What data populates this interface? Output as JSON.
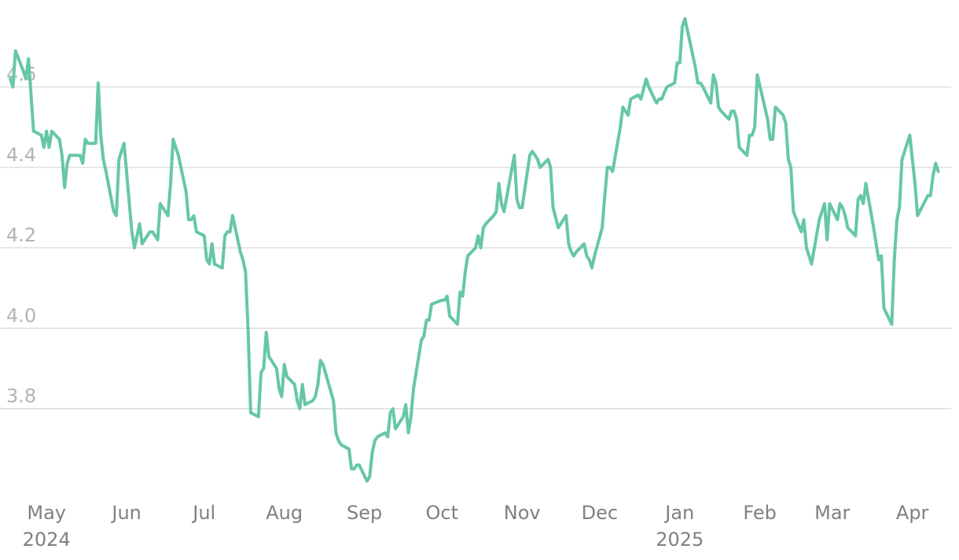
{
  "chart_data": {
    "type": "line",
    "title": "",
    "xlabel": "",
    "ylabel": "",
    "ylim": [
      3.59,
      4.785
    ],
    "yticks": [
      3.8,
      4.0,
      4.2,
      4.4,
      4.6
    ],
    "ytick_labels": [
      "3.8",
      "4.0",
      "4.2",
      "4.4",
      "4.6"
    ],
    "xlim": [
      "2024-04-27",
      "2025-04-30"
    ],
    "xticks": [
      {
        "date": "2024-05-15",
        "label": "May",
        "year": "2024"
      },
      {
        "date": "2024-06-15",
        "label": "Jun"
      },
      {
        "date": "2024-07-15",
        "label": "Jul"
      },
      {
        "date": "2024-08-15",
        "label": "Aug"
      },
      {
        "date": "2024-09-15",
        "label": "Sep"
      },
      {
        "date": "2024-10-15",
        "label": "Oct"
      },
      {
        "date": "2024-11-15",
        "label": "Nov"
      },
      {
        "date": "2024-12-15",
        "label": "Dec"
      },
      {
        "date": "2025-01-15",
        "label": "Jan",
        "year": "2025"
      },
      {
        "date": "2025-02-15",
        "label": "Feb"
      },
      {
        "date": "2025-03-15",
        "label": "Mar"
      },
      {
        "date": "2025-04-15",
        "label": "Apr"
      }
    ],
    "grid": "horizontal",
    "line_color": "#66c7a6",
    "grid_color": "#dcdcdc",
    "series": [
      {
        "x": [
          "2024-05-01",
          "2024-05-02",
          "2024-05-03",
          "2024-05-06",
          "2024-05-07",
          "2024-05-08",
          "2024-05-09",
          "2024-05-10",
          "2024-05-13",
          "2024-05-14",
          "2024-05-15",
          "2024-05-16",
          "2024-05-17",
          "2024-05-20",
          "2024-05-21",
          "2024-05-22",
          "2024-05-23",
          "2024-05-24",
          "2024-05-28",
          "2024-05-29",
          "2024-05-30",
          "2024-05-31",
          "2024-06-03",
          "2024-06-04",
          "2024-06-05",
          "2024-06-06",
          "2024-06-07",
          "2024-06-10",
          "2024-06-11",
          "2024-06-12",
          "2024-06-13",
          "2024-06-14",
          "2024-06-17",
          "2024-06-18",
          "2024-06-20",
          "2024-06-21",
          "2024-06-24",
          "2024-06-25",
          "2024-06-26",
          "2024-06-27",
          "2024-06-28",
          "2024-07-01",
          "2024-07-02",
          "2024-07-03",
          "2024-07-05",
          "2024-07-08",
          "2024-07-09",
          "2024-07-10",
          "2024-07-11",
          "2024-07-12",
          "2024-07-15",
          "2024-07-16",
          "2024-07-17",
          "2024-07-18",
          "2024-07-19",
          "2024-07-22",
          "2024-07-23",
          "2024-07-24",
          "2024-07-25",
          "2024-07-26",
          "2024-07-29",
          "2024-07-30",
          "2024-07-31",
          "2024-08-01",
          "2024-08-02",
          "2024-08-05",
          "2024-08-06",
          "2024-08-07",
          "2024-08-08",
          "2024-08-09",
          "2024-08-12",
          "2024-08-13",
          "2024-08-14",
          "2024-08-15",
          "2024-08-16",
          "2024-08-19",
          "2024-08-20",
          "2024-08-21",
          "2024-08-22",
          "2024-08-23",
          "2024-08-26",
          "2024-08-27",
          "2024-08-28",
          "2024-08-29",
          "2024-08-30",
          "2024-09-03",
          "2024-09-04",
          "2024-09-05",
          "2024-09-06",
          "2024-09-09",
          "2024-09-10",
          "2024-09-11",
          "2024-09-12",
          "2024-09-13",
          "2024-09-16",
          "2024-09-17",
          "2024-09-18",
          "2024-09-19",
          "2024-09-20",
          "2024-09-23",
          "2024-09-24",
          "2024-09-25",
          "2024-09-26",
          "2024-09-27",
          "2024-09-30",
          "2024-10-01",
          "2024-10-02",
          "2024-10-03",
          "2024-10-04",
          "2024-10-07",
          "2024-10-08",
          "2024-10-09",
          "2024-10-10",
          "2024-10-11",
          "2024-10-15",
          "2024-10-16",
          "2024-10-17",
          "2024-10-18",
          "2024-10-21",
          "2024-10-22",
          "2024-10-23",
          "2024-10-24",
          "2024-10-25",
          "2024-10-28",
          "2024-10-29",
          "2024-10-30",
          "2024-10-31",
          "2024-11-01",
          "2024-11-04",
          "2024-11-05",
          "2024-11-06",
          "2024-11-07",
          "2024-11-08",
          "2024-11-12",
          "2024-11-13",
          "2024-11-14",
          "2024-11-15",
          "2024-11-18",
          "2024-11-19",
          "2024-11-20",
          "2024-11-21",
          "2024-11-22",
          "2024-11-25",
          "2024-11-26",
          "2024-11-27",
          "2024-11-29",
          "2024-12-02",
          "2024-12-03",
          "2024-12-04",
          "2024-12-05",
          "2024-12-06",
          "2024-12-09",
          "2024-12-10",
          "2024-12-11",
          "2024-12-12",
          "2024-12-13",
          "2024-12-16",
          "2024-12-17",
          "2024-12-18",
          "2024-12-19",
          "2024-12-20",
          "2024-12-23",
          "2024-12-24",
          "2024-12-26",
          "2024-12-27",
          "2024-12-30",
          "2024-12-31",
          "2025-01-02",
          "2025-01-03",
          "2025-01-06",
          "2025-01-07",
          "2025-01-08",
          "2025-01-10",
          "2025-01-13",
          "2025-01-14",
          "2025-01-15",
          "2025-01-16",
          "2025-01-17",
          "2025-01-21",
          "2025-01-22",
          "2025-01-23",
          "2025-01-24",
          "2025-01-27",
          "2025-01-28",
          "2025-01-29",
          "2025-01-30",
          "2025-01-31",
          "2025-02-03",
          "2025-02-04",
          "2025-02-05",
          "2025-02-06",
          "2025-02-07",
          "2025-02-10",
          "2025-02-11",
          "2025-02-12",
          "2025-02-13",
          "2025-02-14",
          "2025-02-18",
          "2025-02-19",
          "2025-02-20",
          "2025-02-21",
          "2025-02-24",
          "2025-02-25",
          "2025-02-26",
          "2025-02-27",
          "2025-02-28",
          "2025-03-03",
          "2025-03-04",
          "2025-03-05",
          "2025-03-06",
          "2025-03-07",
          "2025-03-10",
          "2025-03-11",
          "2025-03-12",
          "2025-03-13",
          "2025-03-14",
          "2025-03-17",
          "2025-03-18",
          "2025-03-19",
          "2025-03-20",
          "2025-03-21",
          "2025-03-24",
          "2025-03-25",
          "2025-03-26",
          "2025-03-27",
          "2025-03-28",
          "2025-03-31",
          "2025-04-01",
          "2025-04-02",
          "2025-04-03",
          "2025-04-04",
          "2025-04-07",
          "2025-04-08",
          "2025-04-09",
          "2025-04-10",
          "2025-04-11",
          "2025-04-14",
          "2025-04-15",
          "2025-04-16",
          "2025-04-17",
          "2025-04-21",
          "2025-04-22",
          "2025-04-23",
          "2025-04-24",
          "2025-04-25"
        ],
        "y": [
          4.62,
          4.6,
          4.69,
          4.64,
          4.62,
          4.67,
          4.58,
          4.49,
          4.48,
          4.45,
          4.49,
          4.45,
          4.49,
          4.47,
          4.43,
          4.35,
          4.41,
          4.43,
          4.43,
          4.41,
          4.47,
          4.46,
          4.46,
          4.61,
          4.48,
          4.42,
          4.39,
          4.29,
          4.28,
          4.42,
          4.44,
          4.46,
          4.24,
          4.2,
          4.26,
          4.21,
          4.24,
          4.24,
          4.23,
          4.22,
          4.31,
          4.28,
          4.36,
          4.47,
          4.43,
          4.34,
          4.27,
          4.27,
          4.28,
          4.24,
          4.23,
          4.17,
          4.16,
          4.21,
          4.16,
          4.15,
          4.23,
          4.24,
          4.24,
          4.28,
          4.19,
          4.17,
          4.14,
          3.99,
          3.79,
          3.78,
          3.89,
          3.9,
          3.99,
          3.93,
          3.9,
          3.85,
          3.83,
          3.91,
          3.88,
          3.86,
          3.82,
          3.8,
          3.86,
          3.81,
          3.82,
          3.83,
          3.86,
          3.92,
          3.91,
          3.82,
          3.74,
          3.72,
          3.71,
          3.7,
          3.65,
          3.65,
          3.66,
          3.66,
          3.62,
          3.63,
          3.69,
          3.72,
          3.73,
          3.74,
          3.73,
          3.79,
          3.8,
          3.75,
          3.78,
          3.81,
          3.74,
          3.78,
          3.85,
          3.97,
          3.98,
          4.02,
          4.02,
          4.06,
          4.07,
          4.07,
          4.08,
          4.03,
          4.01,
          4.09,
          4.08,
          4.14,
          4.18,
          4.2,
          4.23,
          4.2,
          4.25,
          4.26,
          4.28,
          4.29,
          4.36,
          4.31,
          4.29,
          4.43,
          4.32,
          4.3,
          4.3,
          4.43,
          4.44,
          4.43,
          4.42,
          4.4,
          4.42,
          4.4,
          4.3,
          4.25,
          4.28,
          4.21,
          4.19,
          4.18,
          4.19,
          4.21,
          4.18,
          4.17,
          4.15,
          4.18,
          4.25,
          4.33,
          4.4,
          4.4,
          4.39,
          4.5,
          4.55,
          4.53,
          4.57,
          4.58,
          4.57,
          4.62,
          4.6,
          4.56,
          4.57,
          4.57,
          4.6,
          4.61,
          4.66,
          4.66,
          4.75,
          4.77,
          4.65,
          4.61,
          4.61,
          4.6,
          4.56,
          4.63,
          4.61,
          4.55,
          4.54,
          4.52,
          4.54,
          4.54,
          4.52,
          4.45,
          4.43,
          4.48,
          4.48,
          4.5,
          4.63,
          4.52,
          4.47,
          4.47,
          4.55,
          4.53,
          4.51,
          4.42,
          4.4,
          4.29,
          4.24,
          4.27,
          4.2,
          4.18,
          4.16,
          4.27,
          4.29,
          4.31,
          4.22,
          4.31,
          4.27,
          4.31,
          4.3,
          4.28,
          4.25,
          4.23,
          4.32,
          4.33,
          4.31,
          4.36,
          4.25,
          4.21,
          4.17,
          4.18,
          4.05,
          4.01,
          4.17,
          4.27,
          4.3,
          4.42,
          4.48,
          4.42,
          4.36,
          4.28,
          4.33,
          4.33,
          4.38,
          4.41,
          4.39
        ]
      }
    ]
  }
}
